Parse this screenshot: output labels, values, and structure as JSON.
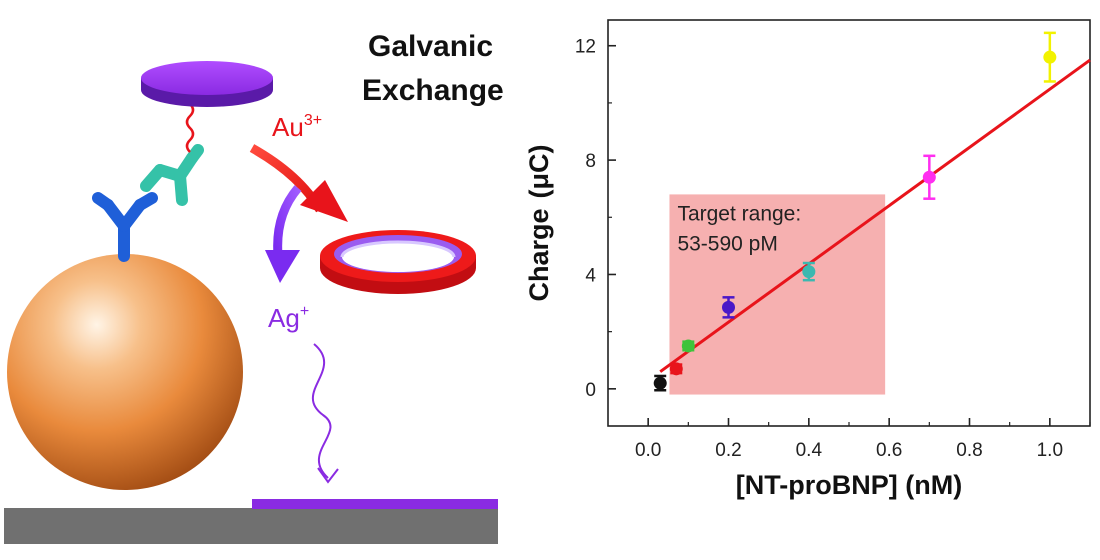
{
  "scheme": {
    "title_line1": "Galvanic",
    "title_line2": "Exchange",
    "au_ion": "Au",
    "au_charge": "3+",
    "ag_ion": "Ag",
    "ag_charge": "+"
  },
  "chart_data": {
    "type": "scatter",
    "xlabel": "[NT-proBNP] (nM)",
    "ylabel_prefix": "Charge",
    "ylabel_unit": "(μC)",
    "xlim": [
      -0.1,
      1.1
    ],
    "ylim": [
      -1.3,
      12.9
    ],
    "xticks": [
      "0.0",
      "0.2",
      "0.4",
      "0.6",
      "0.8",
      "1.0"
    ],
    "xtick_values": [
      0.0,
      0.2,
      0.4,
      0.6,
      0.8,
      1.0
    ],
    "yticks": [
      "0",
      "4",
      "8",
      "12"
    ],
    "ytick_values": [
      0,
      4,
      8,
      12
    ],
    "grid": false,
    "annotation_line1": "Target range:",
    "annotation_line2": "53-590 pM",
    "shaded_region": {
      "x": [
        0.053,
        0.59
      ],
      "y": [
        -0.2,
        6.8
      ],
      "color": "#f6b0b0"
    },
    "fit_line": {
      "x": [
        0.03,
        1.1
      ],
      "y": [
        0.6,
        11.5
      ],
      "color": "#e8141b"
    },
    "points": [
      {
        "x": 0.03,
        "y": 0.2,
        "err": 0.25,
        "color": "#111111"
      },
      {
        "x": 0.07,
        "y": 0.7,
        "err": 0.15,
        "color": "#e8141b"
      },
      {
        "x": 0.1,
        "y": 1.5,
        "err": 0.15,
        "color": "#3ec33a"
      },
      {
        "x": 0.2,
        "y": 2.85,
        "err": 0.35,
        "color": "#4a18c8"
      },
      {
        "x": 0.4,
        "y": 4.1,
        "err": 0.3,
        "color": "#3bb8b0"
      },
      {
        "x": 0.7,
        "y": 7.4,
        "err": 0.75,
        "color": "#ff2ef0"
      },
      {
        "x": 1.0,
        "y": 11.6,
        "err": 0.85,
        "color": "#f2f200"
      }
    ]
  }
}
